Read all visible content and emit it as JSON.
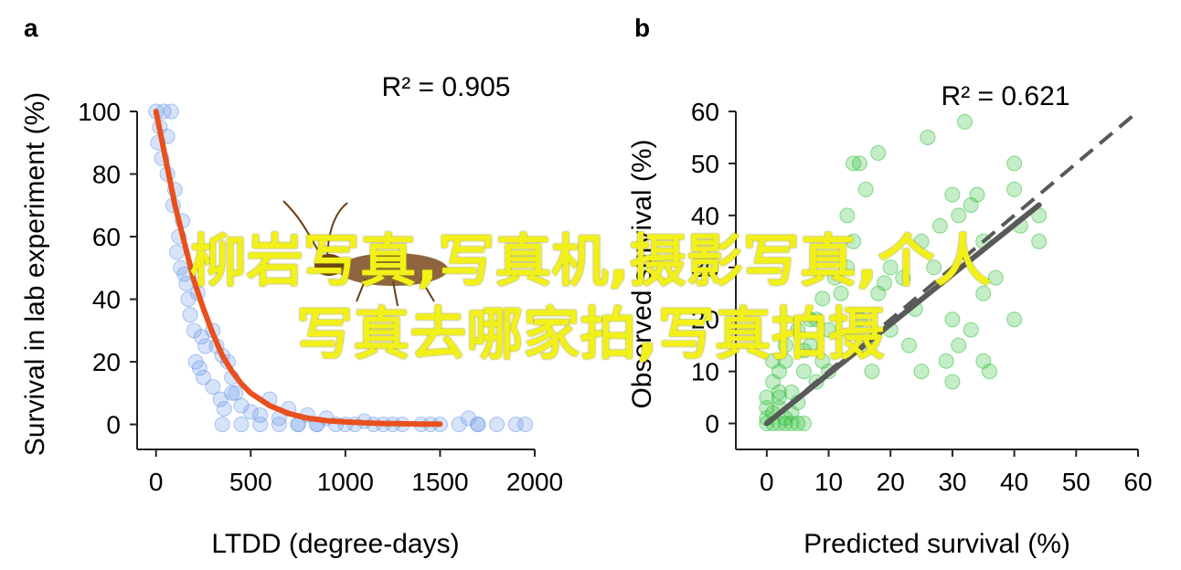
{
  "colors": {
    "panel_a_points": "#6f9be8",
    "panel_a_fit": "#e8501e",
    "panel_b_points": "#2fbf3a",
    "panel_b_fit": "#595959",
    "overlay_text": "#f2f01a",
    "axis": "#222222"
  },
  "overlay": {
    "line1": "柳岩写真,写真机,摄影写真,个人",
    "line2": "写真去哪家拍,写真拍摄"
  },
  "chart_data": [
    {
      "panel": "a",
      "type": "scatter",
      "annotation": "R² = 0.905",
      "xlabel": "LTDD (degree-days)",
      "ylabel": "Survival in lab experiment (%)",
      "xlim": [
        -100,
        2000
      ],
      "ylim": [
        -8,
        100
      ],
      "xticks": [
        0,
        500,
        1000,
        1500,
        2000
      ],
      "yticks": [
        0,
        20,
        40,
        60,
        80,
        100
      ],
      "grid": false,
      "series": [
        {
          "kind": "points",
          "x": [
            0,
            20,
            40,
            10,
            30,
            60,
            80,
            60,
            100,
            90,
            120,
            140,
            110,
            130,
            150,
            170,
            160,
            180,
            200,
            220,
            240,
            260,
            210,
            230,
            250,
            300,
            320,
            350,
            380,
            400,
            420,
            300,
            340,
            360,
            400,
            450,
            500,
            550,
            600,
            650,
            700,
            750,
            800,
            850,
            900,
            950,
            1000,
            1050,
            1100,
            1150,
            1200,
            1300,
            1400,
            1500,
            1600,
            1650,
            1700,
            1800,
            1900,
            1950,
            350,
            450,
            550,
            650,
            750,
            850,
            1250,
            1450,
            1700
          ],
          "y": [
            100,
            95,
            100,
            90,
            85,
            92,
            100,
            80,
            75,
            70,
            60,
            65,
            55,
            50,
            48,
            40,
            45,
            35,
            30,
            42,
            28,
            25,
            20,
            18,
            15,
            30,
            25,
            22,
            20,
            15,
            10,
            12,
            8,
            5,
            10,
            6,
            4,
            3,
            8,
            2,
            5,
            0,
            3,
            0,
            2,
            0,
            0,
            0,
            1,
            0,
            0,
            0,
            0,
            0,
            0,
            2,
            0,
            0,
            0,
            0,
            0,
            0,
            0,
            0,
            0,
            0,
            0,
            0,
            0
          ]
        },
        {
          "kind": "fit",
          "x": [
            0,
            50,
            100,
            150,
            200,
            250,
            300,
            350,
            400,
            450,
            500,
            600,
            700,
            800,
            900,
            1000,
            1100,
            1200,
            1300,
            1400,
            1500
          ],
          "y": [
            100,
            85,
            70,
            58,
            46,
            37,
            29,
            22,
            17,
            13,
            10,
            6,
            3.5,
            2,
            1.2,
            0.8,
            0.5,
            0.3,
            0.2,
            0.1,
            0.1
          ]
        }
      ]
    },
    {
      "panel": "b",
      "type": "scatter",
      "annotation": "R² = 0.621",
      "xlabel": "Predicted survival (%)",
      "ylabel": "Observed survival (%)",
      "xlim": [
        -5,
        60
      ],
      "ylim": [
        -5,
        60
      ],
      "xticks": [
        0,
        10,
        20,
        30,
        40,
        50,
        60
      ],
      "yticks": [
        0,
        10,
        20,
        30,
        40,
        50,
        60
      ],
      "grid": false,
      "series": [
        {
          "kind": "points",
          "x": [
            0,
            0,
            1,
            1,
            2,
            2,
            3,
            3,
            4,
            5,
            0,
            1,
            2,
            3,
            4,
            5,
            6,
            7,
            8,
            8,
            9,
            10,
            10,
            12,
            13,
            14,
            15,
            16,
            17,
            18,
            13,
            14,
            16,
            18,
            20,
            22,
            24,
            25,
            26,
            28,
            30,
            31,
            32,
            33,
            34,
            35,
            30,
            31,
            35,
            36,
            40,
            40,
            41,
            44,
            44,
            20,
            25,
            15,
            30,
            35,
            37,
            40,
            0,
            2,
            4,
            6,
            1,
            3,
            5,
            7,
            2,
            6,
            9,
            11,
            19,
            23,
            27,
            29,
            33
          ],
          "y": [
            0,
            1,
            0,
            2,
            0,
            3,
            1,
            0,
            0,
            0,
            5,
            8,
            10,
            12,
            6,
            4,
            10,
            15,
            20,
            8,
            12,
            10,
            18,
            25,
            30,
            50,
            20,
            15,
            10,
            25,
            40,
            35,
            45,
            52,
            30,
            28,
            22,
            35,
            55,
            38,
            44,
            40,
            58,
            42,
            44,
            35,
            20,
            15,
            12,
            10,
            50,
            45,
            38,
            35,
            40,
            18,
            10,
            50,
            8,
            25,
            28,
            20,
            3,
            5,
            2,
            0,
            12,
            15,
            18,
            20,
            6,
            14,
            24,
            28,
            27,
            15,
            30,
            12,
            18
          ]
        },
        {
          "kind": "fit",
          "x": [
            0,
            44
          ],
          "y": [
            0,
            42
          ]
        },
        {
          "kind": "identity",
          "x": [
            0,
            60
          ],
          "y": [
            0,
            60
          ]
        }
      ]
    }
  ]
}
